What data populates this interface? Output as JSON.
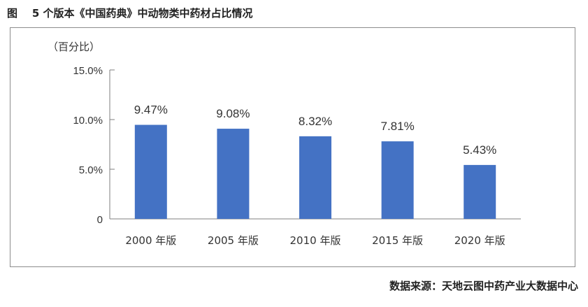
{
  "figure": {
    "title": "图    5 个版本《中国药典》中动物类中药材占比情况",
    "source": "数据来源：天地云图中药产业大数据中心"
  },
  "chart_data": {
    "type": "bar",
    "categories": [
      "2000 年版",
      "2005 年版",
      "2010 年版",
      "2015 年版",
      "2020 年版"
    ],
    "values": [
      9.47,
      9.08,
      8.32,
      7.81,
      5.43
    ],
    "data_labels": [
      "9.47%",
      "9.08%",
      "8.32%",
      "7.81%",
      "5.43%"
    ],
    "ylabel": "（百分比）",
    "ylim": [
      0,
      15
    ],
    "yticks": [
      0,
      5,
      10,
      15
    ],
    "ytick_labels": [
      "0",
      "5.0%",
      "10.0%",
      "15.0%"
    ],
    "grid": false,
    "bar_color": "#4472c4"
  }
}
